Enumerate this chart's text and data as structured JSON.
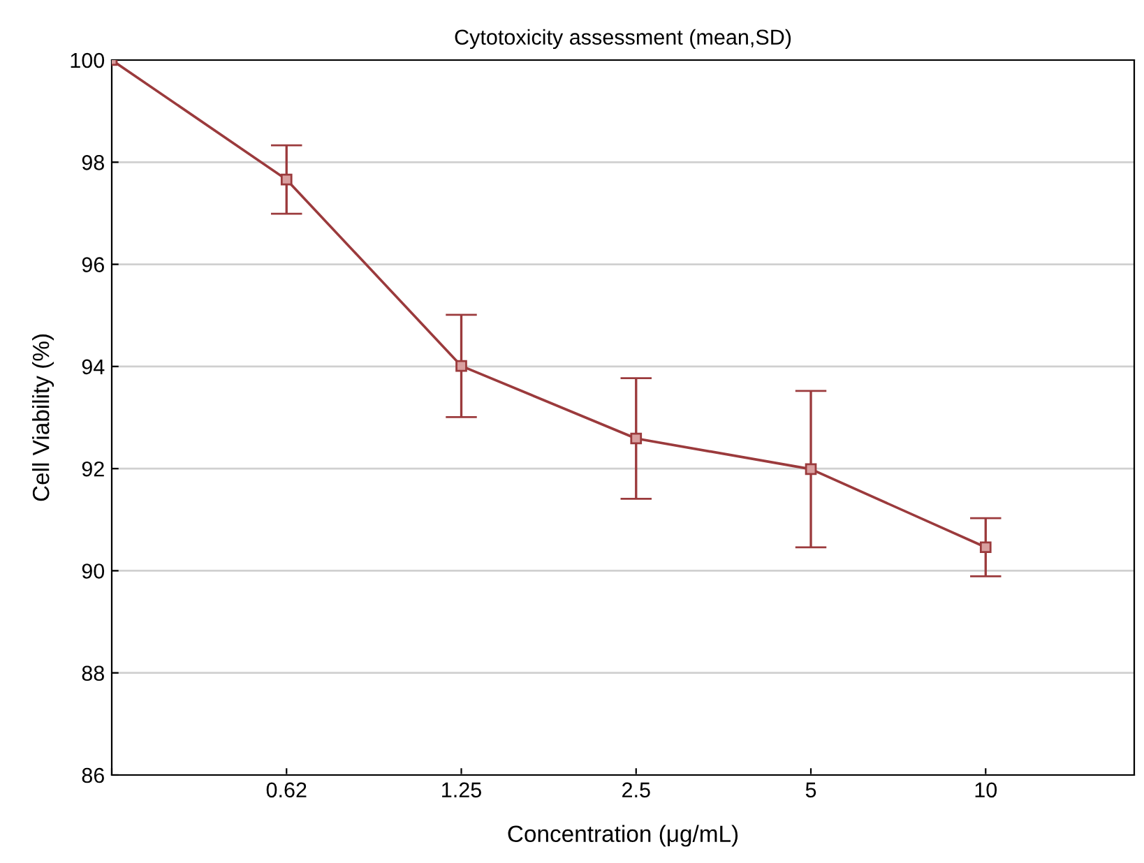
{
  "chart_data": {
    "type": "line",
    "title": "Cytotoxicity assessment (mean,SD)",
    "xlabel": "Concentration (μg/mL)",
    "ylabel": "Cell Viability (%)",
    "categories": [
      null,
      "0.62",
      "1.25",
      "2.5",
      "5",
      "10"
    ],
    "series": [
      {
        "color": "#9b3a3c",
        "values": [
          100,
          97.66,
          94.01,
          92.59,
          91.99,
          90.46
        ],
        "errors": [
          null,
          0.67,
          1.0,
          1.18,
          1.53,
          0.57
        ]
      }
    ],
    "ylim": [
      86,
      100
    ],
    "yticks": [
      86,
      88,
      90,
      92,
      94,
      96,
      98,
      100
    ],
    "grid": "y",
    "marker": "square",
    "line_style": "solid"
  }
}
